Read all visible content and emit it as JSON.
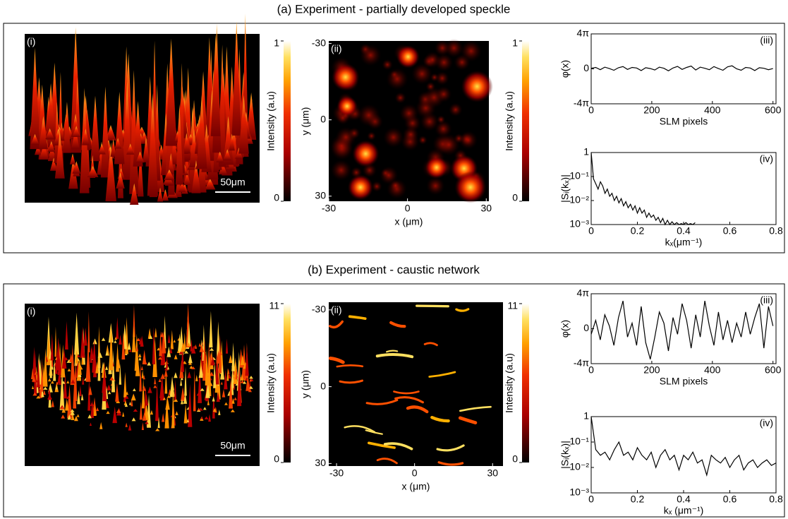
{
  "figure": {
    "panels": [
      {
        "title": "(a) Experiment - partially developed speckle",
        "image_i": {
          "label": "(i)",
          "scale_bar": "50μm"
        },
        "colorbar_i": {
          "label": "Intensity (a.u)",
          "ticks": [
            1,
            0
          ],
          "lim": [
            0,
            1
          ]
        },
        "image_ii": {
          "label": "(ii)",
          "xlabel": "x (μm)",
          "ylabel": "y (μm)",
          "xticks": [
            -30,
            0,
            30
          ],
          "yticks": [
            -30,
            0,
            30
          ],
          "xlim": [
            -30,
            31
          ],
          "ylim": [
            -31,
            32
          ]
        },
        "colorbar_ii": {
          "label": "Intensity (a.u)",
          "ticks": [
            1,
            0
          ],
          "lim": [
            0,
            1
          ]
        }
      },
      {
        "title": "(b) Experiment - caustic network",
        "image_i": {
          "label": "(i)",
          "scale_bar": "50μm"
        },
        "colorbar_i": {
          "label": "Intensity (a.u)",
          "ticks": [
            11,
            0
          ],
          "lim": [
            0,
            11
          ]
        },
        "image_ii": {
          "label": "(ii)",
          "xlabel": "x (μm)",
          "ylabel": "y (μm)",
          "xticks": [
            -30,
            0,
            30
          ],
          "yticks": [
            -30,
            0,
            30
          ],
          "xlim": [
            -33,
            34
          ],
          "ylim": [
            -33,
            31
          ]
        },
        "colorbar_ii": {
          "label": "Intensity (a.u)",
          "ticks": [
            11,
            0
          ],
          "lim": [
            0,
            11
          ]
        }
      }
    ]
  },
  "chart_data": [
    {
      "type": "line",
      "panel_label": "(iii)",
      "xlabel": "SLM pixels",
      "ylabel": "φ(x)",
      "color": "#000000",
      "x": [
        0,
        15,
        30,
        45,
        60,
        75,
        90,
        105,
        120,
        135,
        150,
        165,
        180,
        195,
        210,
        225,
        240,
        255,
        270,
        285,
        300,
        315,
        330,
        345,
        360,
        375,
        390,
        405,
        420,
        435,
        450,
        465,
        480,
        495,
        510,
        525,
        540,
        555,
        570,
        585,
        600
      ],
      "values": [
        0.2,
        0.5,
        -0.3,
        0.6,
        0.1,
        -0.5,
        0.4,
        0.8,
        -0.2,
        0.5,
        0.3,
        -0.6,
        0.4,
        0.1,
        -0.4,
        0.6,
        0.2,
        -0.7,
        0.3,
        0.9,
        -0.2,
        0.5,
        1.0,
        -0.4,
        0.6,
        0.2,
        -0.3,
        0.8,
        0.1,
        -0.5,
        0.7,
        1.1,
        0.0,
        -0.5,
        0.5,
        0.3,
        -0.6,
        0.4,
        0.2,
        -0.3,
        0.1
      ],
      "xlim": [
        0,
        610
      ],
      "ylim": [
        -12.566,
        12.566
      ],
      "xticks": [
        0,
        200,
        400,
        600
      ],
      "yticks": [
        {
          "value": 12.566,
          "label": "4π"
        },
        0,
        {
          "value": -12.566,
          "label": "-4π"
        }
      ]
    },
    {
      "type": "line",
      "panel_label": "(iv)",
      "xlabel": "kₓ(μm⁻¹)",
      "ylabel": "|Sᵢ(kₓ)|",
      "color": "#000000",
      "log_y": true,
      "x": [
        0,
        0.01,
        0.02,
        0.03,
        0.04,
        0.05,
        0.06,
        0.07,
        0.08,
        0.09,
        0.1,
        0.11,
        0.12,
        0.13,
        0.14,
        0.15,
        0.16,
        0.17,
        0.18,
        0.19,
        0.2,
        0.21,
        0.22,
        0.23,
        0.24,
        0.25,
        0.26,
        0.27,
        0.28,
        0.29,
        0.3,
        0.31,
        0.32,
        0.33,
        0.34,
        0.35,
        0.36,
        0.37,
        0.38,
        0.39,
        0.4,
        0.41,
        0.42,
        0.43,
        0.44,
        0.45
      ],
      "values": [
        1,
        0.08,
        0.05,
        0.03,
        0.06,
        0.04,
        0.02,
        0.03,
        0.015,
        0.02,
        0.01,
        0.015,
        0.008,
        0.012,
        0.006,
        0.009,
        0.005,
        0.007,
        0.004,
        0.006,
        0.003,
        0.005,
        0.003,
        0.004,
        0.002,
        0.003,
        0.002,
        0.0025,
        0.0015,
        0.002,
        0.0012,
        0.0018,
        0.001,
        0.0015,
        0.001,
        0.0013,
        0.001,
        0.0012,
        0.001,
        0.0011,
        0.001,
        0.0012,
        0.001,
        0.0011,
        0.001,
        0.0012
      ],
      "xlim": [
        0,
        0.8
      ],
      "ylim": [
        0.001,
        1
      ],
      "xticks": [
        0,
        0.2,
        0.4,
        0.6,
        0.8
      ],
      "yticks": [
        1,
        {
          "value": 0.1,
          "label": "10⁻¹"
        },
        {
          "value": 0.01,
          "label": "10⁻²"
        },
        {
          "value": 0.001,
          "label": "10⁻³"
        }
      ]
    },
    {
      "type": "line",
      "panel_label": "(iii)",
      "xlabel": "SLM pixels",
      "ylabel": "φ(x)",
      "color": "#000000",
      "x": [
        0,
        15,
        30,
        45,
        60,
        75,
        90,
        105,
        120,
        135,
        150,
        165,
        180,
        195,
        210,
        225,
        240,
        255,
        270,
        285,
        300,
        315,
        330,
        345,
        360,
        375,
        390,
        405,
        420,
        435,
        450,
        465,
        480,
        495,
        510,
        525,
        540,
        555,
        570,
        585,
        600
      ],
      "values": [
        -2,
        3,
        -4,
        5,
        1,
        -6,
        4,
        10,
        -3,
        2,
        -6,
        8,
        -5,
        -11,
        -3,
        6,
        2,
        -8,
        4,
        -2,
        9,
        3,
        -7,
        5,
        -3,
        10,
        1,
        -6,
        6,
        -4,
        3,
        -5,
        2,
        -3,
        6,
        -2,
        4,
        9,
        -7,
        8,
        1
      ],
      "xlim": [
        0,
        610
      ],
      "ylim": [
        -12.566,
        12.566
      ],
      "xticks": [
        0,
        200,
        400,
        600
      ],
      "yticks": [
        {
          "value": 12.566,
          "label": "4π"
        },
        0,
        {
          "value": -12.566,
          "label": "-4π"
        }
      ]
    },
    {
      "type": "line",
      "panel_label": "(iv)",
      "xlabel": "kₓ (μm⁻¹)",
      "ylabel": "|Sᵢ(kₓ)|",
      "color": "#000000",
      "log_y": true,
      "x": [
        0,
        0.02,
        0.04,
        0.06,
        0.08,
        0.1,
        0.12,
        0.14,
        0.16,
        0.18,
        0.2,
        0.22,
        0.24,
        0.26,
        0.28,
        0.3,
        0.32,
        0.34,
        0.36,
        0.38,
        0.4,
        0.42,
        0.44,
        0.46,
        0.48,
        0.5,
        0.52,
        0.54,
        0.56,
        0.58,
        0.6,
        0.62,
        0.64,
        0.66,
        0.68,
        0.7,
        0.72,
        0.74,
        0.76,
        0.78,
        0.8
      ],
      "values": [
        1,
        0.05,
        0.03,
        0.04,
        0.02,
        0.05,
        0.1,
        0.03,
        0.04,
        0.02,
        0.06,
        0.03,
        0.02,
        0.04,
        0.01,
        0.03,
        0.05,
        0.02,
        0.03,
        0.008,
        0.03,
        0.02,
        0.04,
        0.015,
        0.02,
        0.005,
        0.03,
        0.02,
        0.015,
        0.025,
        0.01,
        0.02,
        0.03,
        0.008,
        0.015,
        0.02,
        0.01,
        0.015,
        0.02,
        0.012,
        0.015
      ],
      "xlim": [
        0,
        0.8
      ],
      "ylim": [
        0.001,
        1
      ],
      "xticks": [
        0,
        0.2,
        0.4,
        0.6,
        0.8
      ],
      "yticks": [
        1,
        {
          "value": 0.1,
          "label": "10⁻¹"
        },
        {
          "value": 0.01,
          "label": "10⁻²"
        },
        {
          "value": 0.001,
          "label": "10⁻³"
        }
      ]
    }
  ]
}
